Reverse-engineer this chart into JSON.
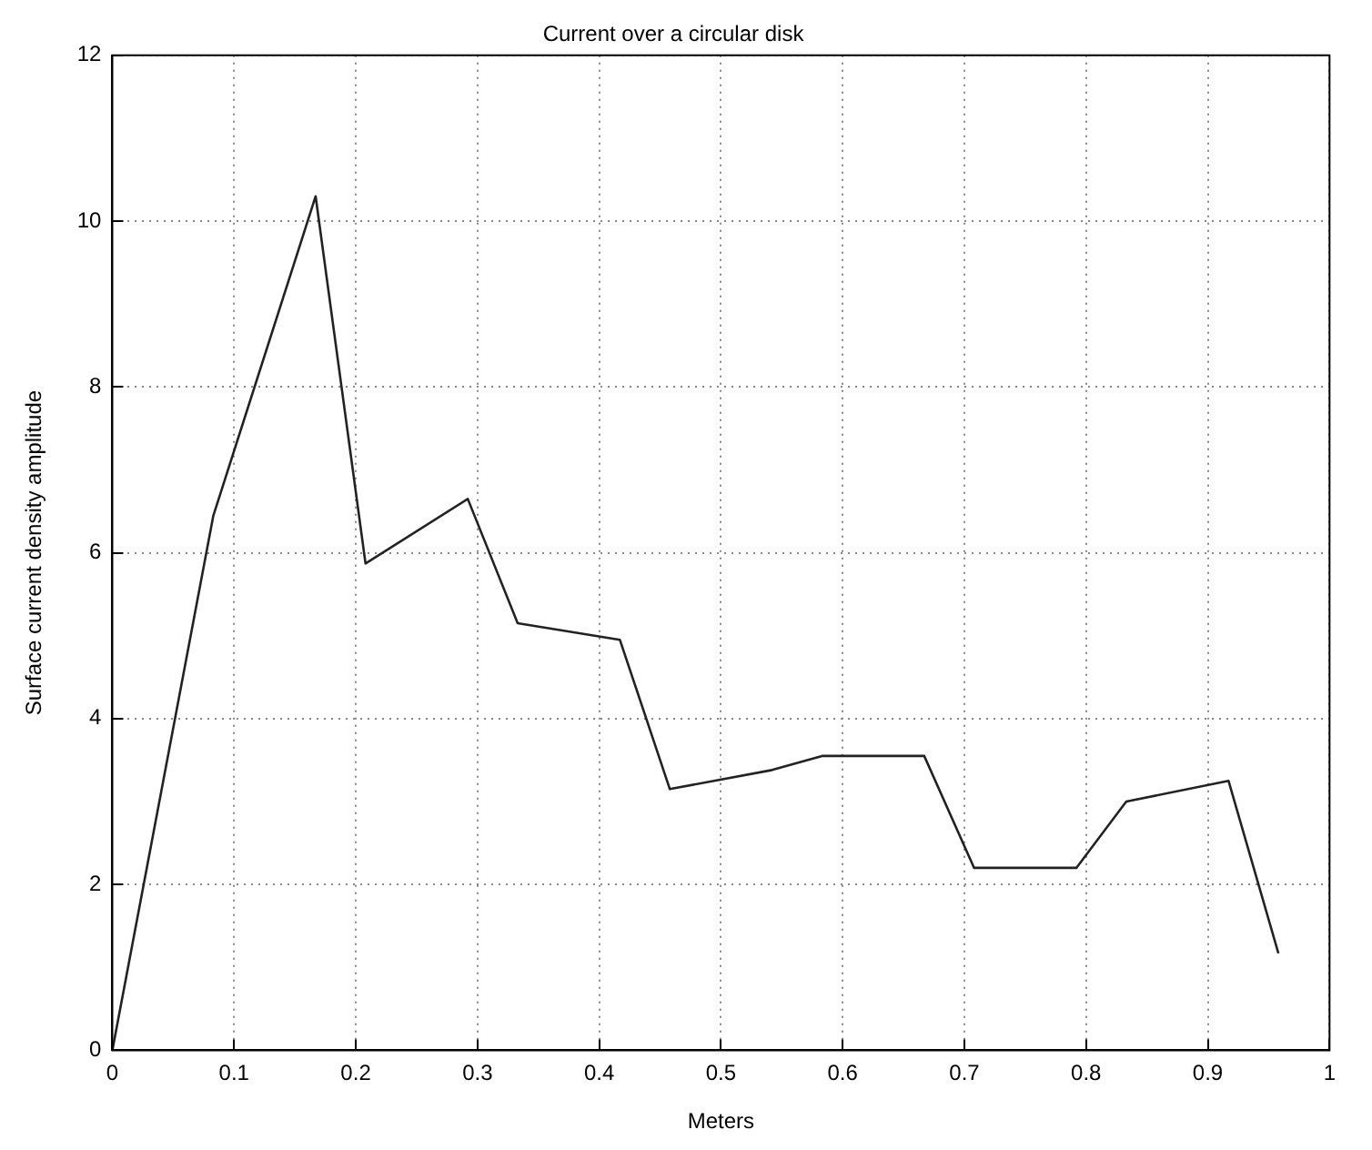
{
  "chart_data": {
    "type": "line",
    "title": "Current over a circular disk",
    "xlabel": "Meters",
    "ylabel": "Surface current density amplitude",
    "x": [
      0,
      0.083,
      0.167,
      0.208,
      0.292,
      0.333,
      0.417,
      0.458,
      0.542,
      0.583,
      0.667,
      0.708,
      0.792,
      0.833,
      0.917,
      0.958
    ],
    "series": [
      {
        "color": "#222222",
        "values": [
          0,
          6.45,
          10.3,
          5.87,
          6.65,
          5.15,
          4.95,
          3.15,
          3.38,
          3.55,
          3.55,
          2.2,
          2.2,
          3.0,
          3.25,
          1.17
        ]
      }
    ],
    "xlim": [
      0,
      1
    ],
    "xticks": [
      0,
      0.1,
      0.2,
      0.3,
      0.4,
      0.5,
      0.6,
      0.7,
      0.8,
      0.9,
      1
    ],
    "ylim": [
      0,
      12
    ],
    "yticks": [
      0,
      2,
      4,
      6,
      8,
      10,
      12
    ],
    "grid": true,
    "line_style": "solid",
    "marker": "none",
    "legend": false
  }
}
